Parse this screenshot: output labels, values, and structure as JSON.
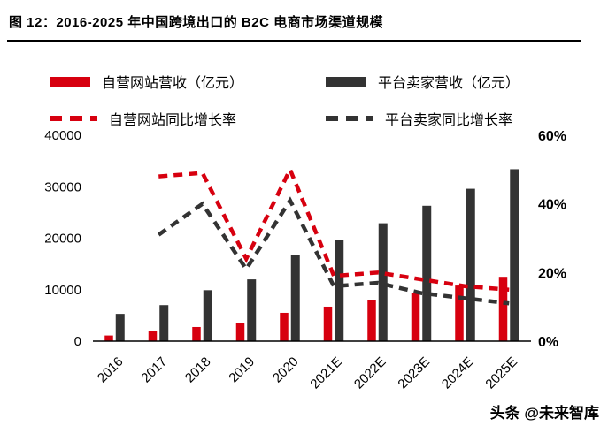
{
  "title": "图 12：2016-2025 年中国跨境出口的 B2C 电商市场渠道规模",
  "watermark": "头条 @未来智库",
  "colors": {
    "red": "#d7000f",
    "dark": "#333333",
    "axis": "#000000"
  },
  "legend": {
    "items": [
      {
        "label": "自营网站营收（亿元）",
        "swatch": "bar",
        "color": "red"
      },
      {
        "label": "平台卖家营收（亿元）",
        "swatch": "bar",
        "color": "dark"
      },
      {
        "label": "自营网站同比增长率",
        "swatch": "dashed-line",
        "color": "red"
      },
      {
        "label": "平台卖家同比增长率",
        "swatch": "dashed-line",
        "color": "dark"
      }
    ]
  },
  "chart_data": {
    "type": "bar",
    "subtype": "bar+line combo, dual axis",
    "categories": [
      "2016",
      "2017",
      "2018",
      "2019",
      "2020",
      "2021E",
      "2022E",
      "2023E",
      "2024E",
      "2025E"
    ],
    "bar_series": [
      {
        "name": "自营网站营收（亿元）",
        "color": "red",
        "axis": "left",
        "values": [
          1100,
          1900,
          2750,
          3600,
          5500,
          6700,
          7900,
          9300,
          10800,
          12500
        ]
      },
      {
        "name": "平台卖家营收（亿元）",
        "color": "dark",
        "axis": "left",
        "values": [
          5300,
          7000,
          9900,
          12000,
          16800,
          19600,
          22900,
          26300,
          29600,
          33400
        ]
      }
    ],
    "line_series": [
      {
        "name": "自营网站同比增长率",
        "color": "red",
        "axis": "right",
        "style": "dashed",
        "values": [
          null,
          48,
          49,
          24,
          50,
          19,
          20,
          18,
          16,
          15
        ]
      },
      {
        "name": "平台卖家同比增长率",
        "color": "dark",
        "axis": "right",
        "style": "dashed",
        "values": [
          null,
          31,
          40,
          21,
          41,
          16,
          17,
          14,
          12.5,
          11
        ]
      }
    ],
    "left_axis": {
      "min": 0,
      "max": 40000,
      "ticks": [
        0,
        10000,
        20000,
        30000,
        40000
      ],
      "unit": "亿元"
    },
    "right_axis": {
      "min": 0,
      "max": 60,
      "ticks": [
        0,
        20,
        40,
        60
      ],
      "unit": "%"
    },
    "grid": false,
    "legend_position": "top"
  }
}
